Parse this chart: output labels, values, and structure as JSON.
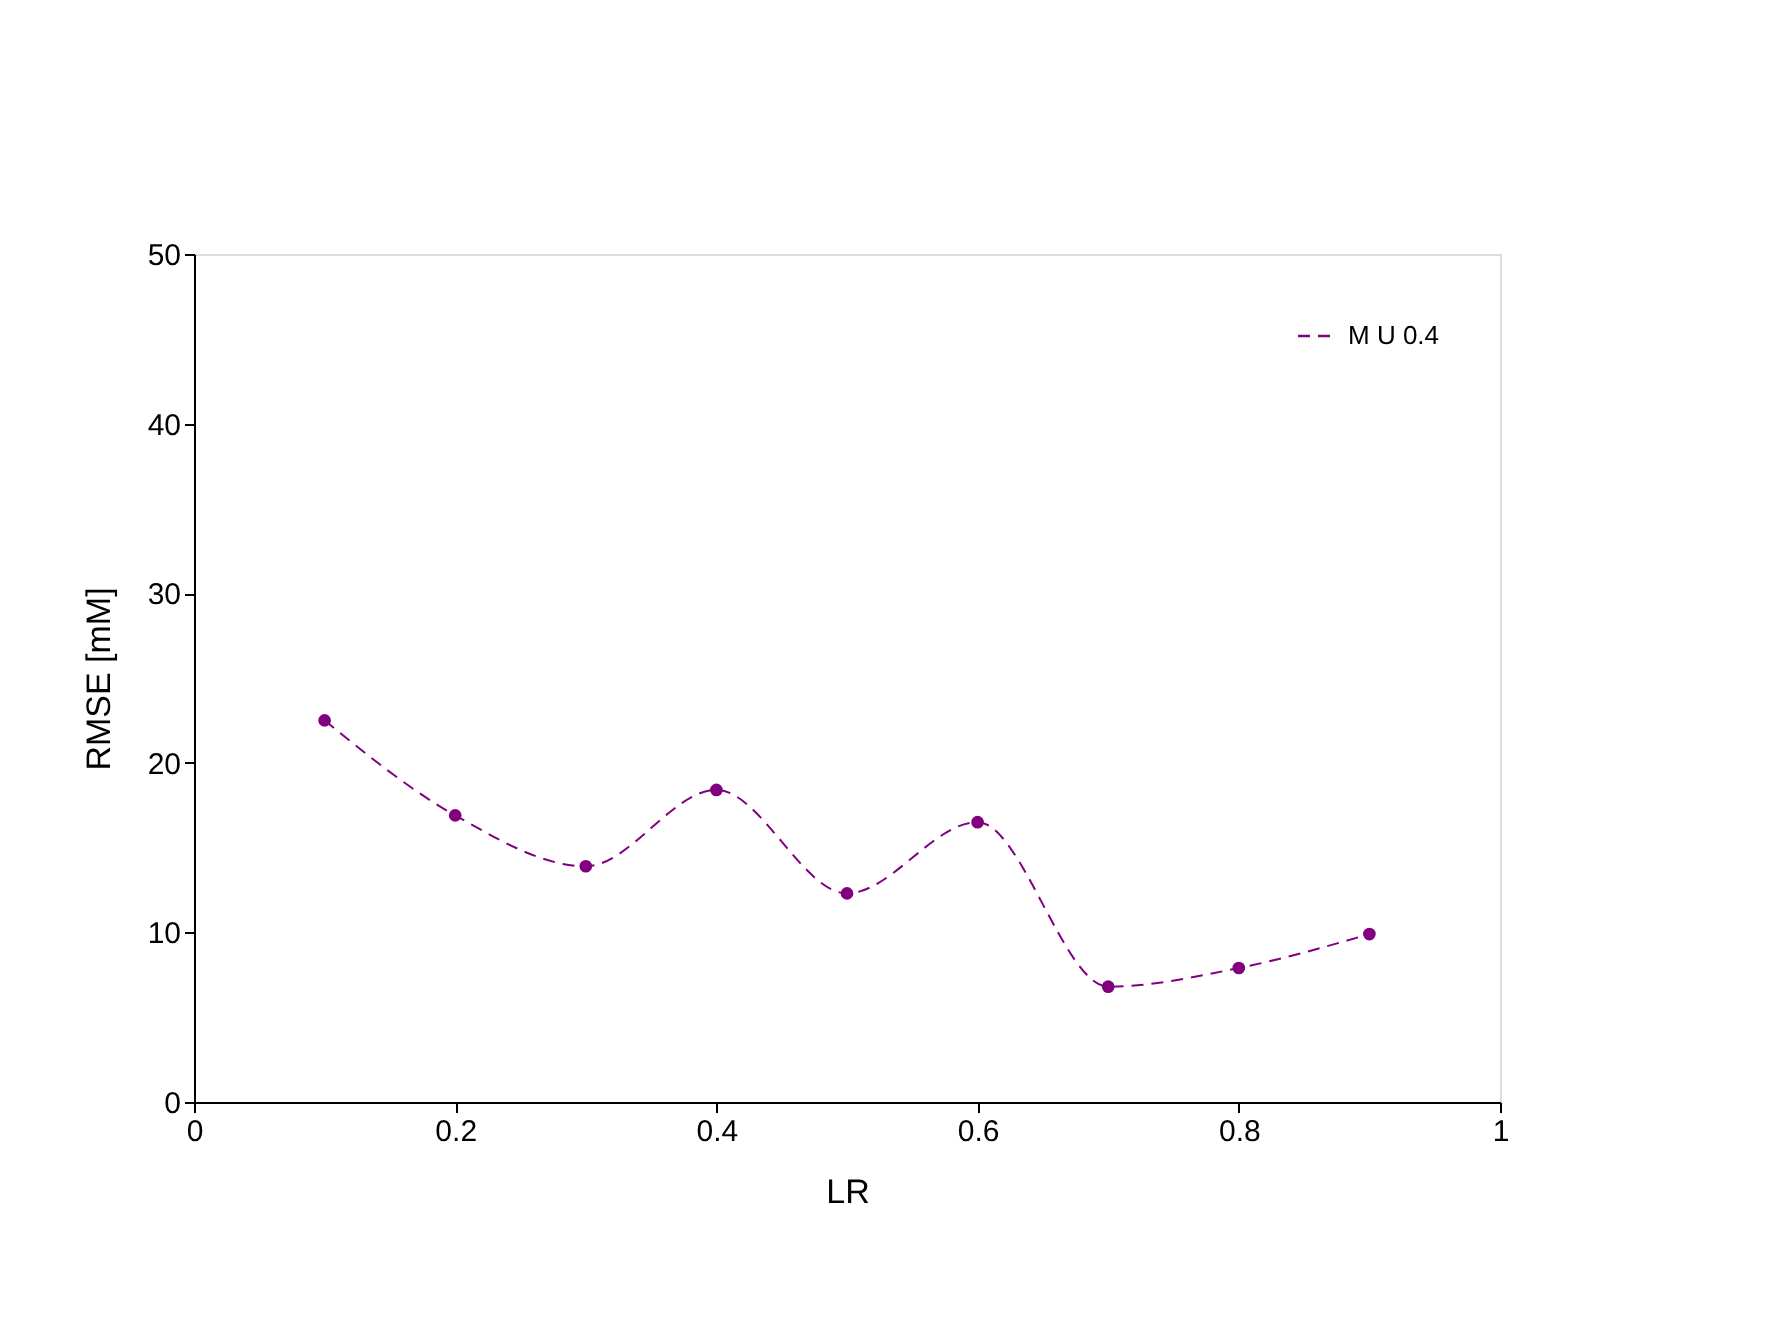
{
  "chart_data": {
    "type": "line",
    "xlabel": "LR",
    "ylabel": "RMSE [mM]",
    "x": [
      0.1,
      0.2,
      0.3,
      0.4,
      0.5,
      0.6,
      0.7,
      0.8,
      0.9
    ],
    "series": [
      {
        "name": "M U 0.4",
        "color": "#800080",
        "values": [
          22.5,
          16.9,
          13.9,
          18.4,
          12.3,
          16.5,
          6.8,
          7.9,
          9.9
        ]
      }
    ],
    "xlim": [
      0,
      1
    ],
    "xticks": [
      0,
      0.2,
      0.4,
      0.6,
      0.8,
      1
    ],
    "ylim": [
      0,
      50
    ],
    "yticks": [
      0,
      10,
      20,
      30,
      40,
      50
    ],
    "grid": false,
    "legend": "top right",
    "marker": "circle",
    "line_style": "dashed"
  }
}
